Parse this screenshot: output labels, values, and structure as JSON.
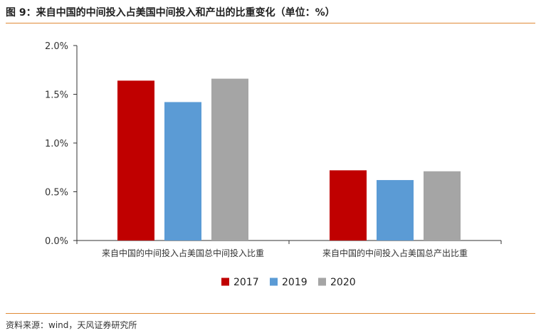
{
  "title": "图 9：来自中国的中间投入占美国中间投入和产出的比重变化（单位：%）",
  "source": "资料来源：wind，天风证券研究所",
  "colors": {
    "2017": "#c00000",
    "2019": "#5b9bd5",
    "2020": "#a5a5a5",
    "rule": "#e08a37",
    "axis": "#333333"
  },
  "chart_data": {
    "type": "bar",
    "title": "",
    "xlabel": "",
    "ylabel": "",
    "ylim": [
      0,
      2.0
    ],
    "y_ticks": [
      "0.0%",
      "0.5%",
      "1.0%",
      "1.5%",
      "2.0%"
    ],
    "grid": false,
    "legend_position": "bottom",
    "categories": [
      "来自中国的中间投入占美国总中间投入比重",
      "来自中国的中间投入占美国总产出比重"
    ],
    "series": [
      {
        "name": "2017",
        "color": "#c00000",
        "values": [
          1.64,
          0.72
        ]
      },
      {
        "name": "2019",
        "color": "#5b9bd5",
        "values": [
          1.42,
          0.62
        ]
      },
      {
        "name": "2020",
        "color": "#a5a5a5",
        "values": [
          1.66,
          0.71
        ]
      }
    ]
  }
}
